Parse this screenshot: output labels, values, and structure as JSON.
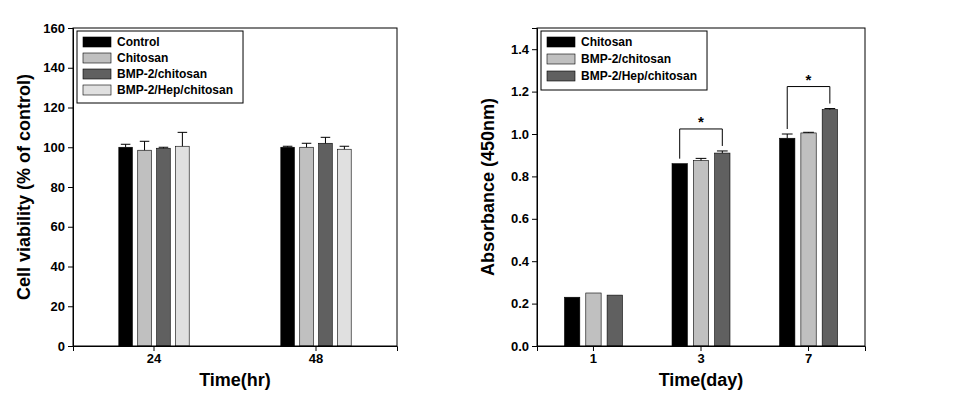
{
  "chart_data": [
    {
      "type": "bar",
      "x_label": "Time(hr)",
      "y_label": "Cell viability (% of control)",
      "categories": [
        "24",
        "48"
      ],
      "series": [
        {
          "name": "Control",
          "color": "#000000",
          "values": [
            100,
            100
          ],
          "errors": [
            1.5,
            0.5
          ]
        },
        {
          "name": "Chitosan",
          "color": "#c0c0c0",
          "values": [
            98.5,
            100
          ],
          "errors": [
            4.5,
            2
          ]
        },
        {
          "name": "BMP-2/chitosan",
          "color": "#606060",
          "values": [
            99.5,
            102
          ],
          "errors": [
            0.5,
            3
          ]
        },
        {
          "name": "BMP-2/Hep/chitosan",
          "color": "#e0e0e0",
          "values": [
            100.5,
            99
          ],
          "errors": [
            7,
            1.5
          ]
        }
      ],
      "ylim": [
        0,
        160
      ],
      "yticks": [
        0,
        20,
        40,
        60,
        80,
        100,
        120,
        140,
        160
      ],
      "grid": false,
      "legend": "upper left"
    },
    {
      "type": "bar",
      "x_label": "Time(day)",
      "y_label": "Absorbance (450nm)",
      "categories": [
        "1",
        "3",
        "7"
      ],
      "series": [
        {
          "name": "Chitosan",
          "color": "#000000",
          "values": [
            0.23,
            0.86,
            0.98
          ],
          "errors": [
            null,
            null,
            0.02
          ]
        },
        {
          "name": "BMP-2/chitosan",
          "color": "#c0c0c0",
          "values": [
            0.25,
            0.875,
            1.005
          ],
          "errors": [
            null,
            0.01,
            0.003
          ]
        },
        {
          "name": "BMP-2/Hep/chitosan",
          "color": "#606060",
          "values": [
            0.24,
            0.91,
            1.115
          ],
          "errors": [
            null,
            0.01,
            0.005
          ]
        }
      ],
      "ylim": [
        0,
        1.5
      ],
      "yticks": [
        {
          "value": 0,
          "label": "0.0"
        },
        0.2,
        0.4,
        0.6,
        0.8,
        {
          "value": 1,
          "label": "1.0"
        },
        1.2,
        1.4
      ],
      "grid": false,
      "legend": "upper left",
      "annotations": [
        {
          "text": "*",
          "category": "3",
          "from": "Chitosan",
          "to": "BMP-2/Hep/chitosan"
        },
        {
          "text": "*",
          "category": "7",
          "from": "Chitosan",
          "to": "BMP-2/Hep/chitosan"
        }
      ]
    }
  ]
}
